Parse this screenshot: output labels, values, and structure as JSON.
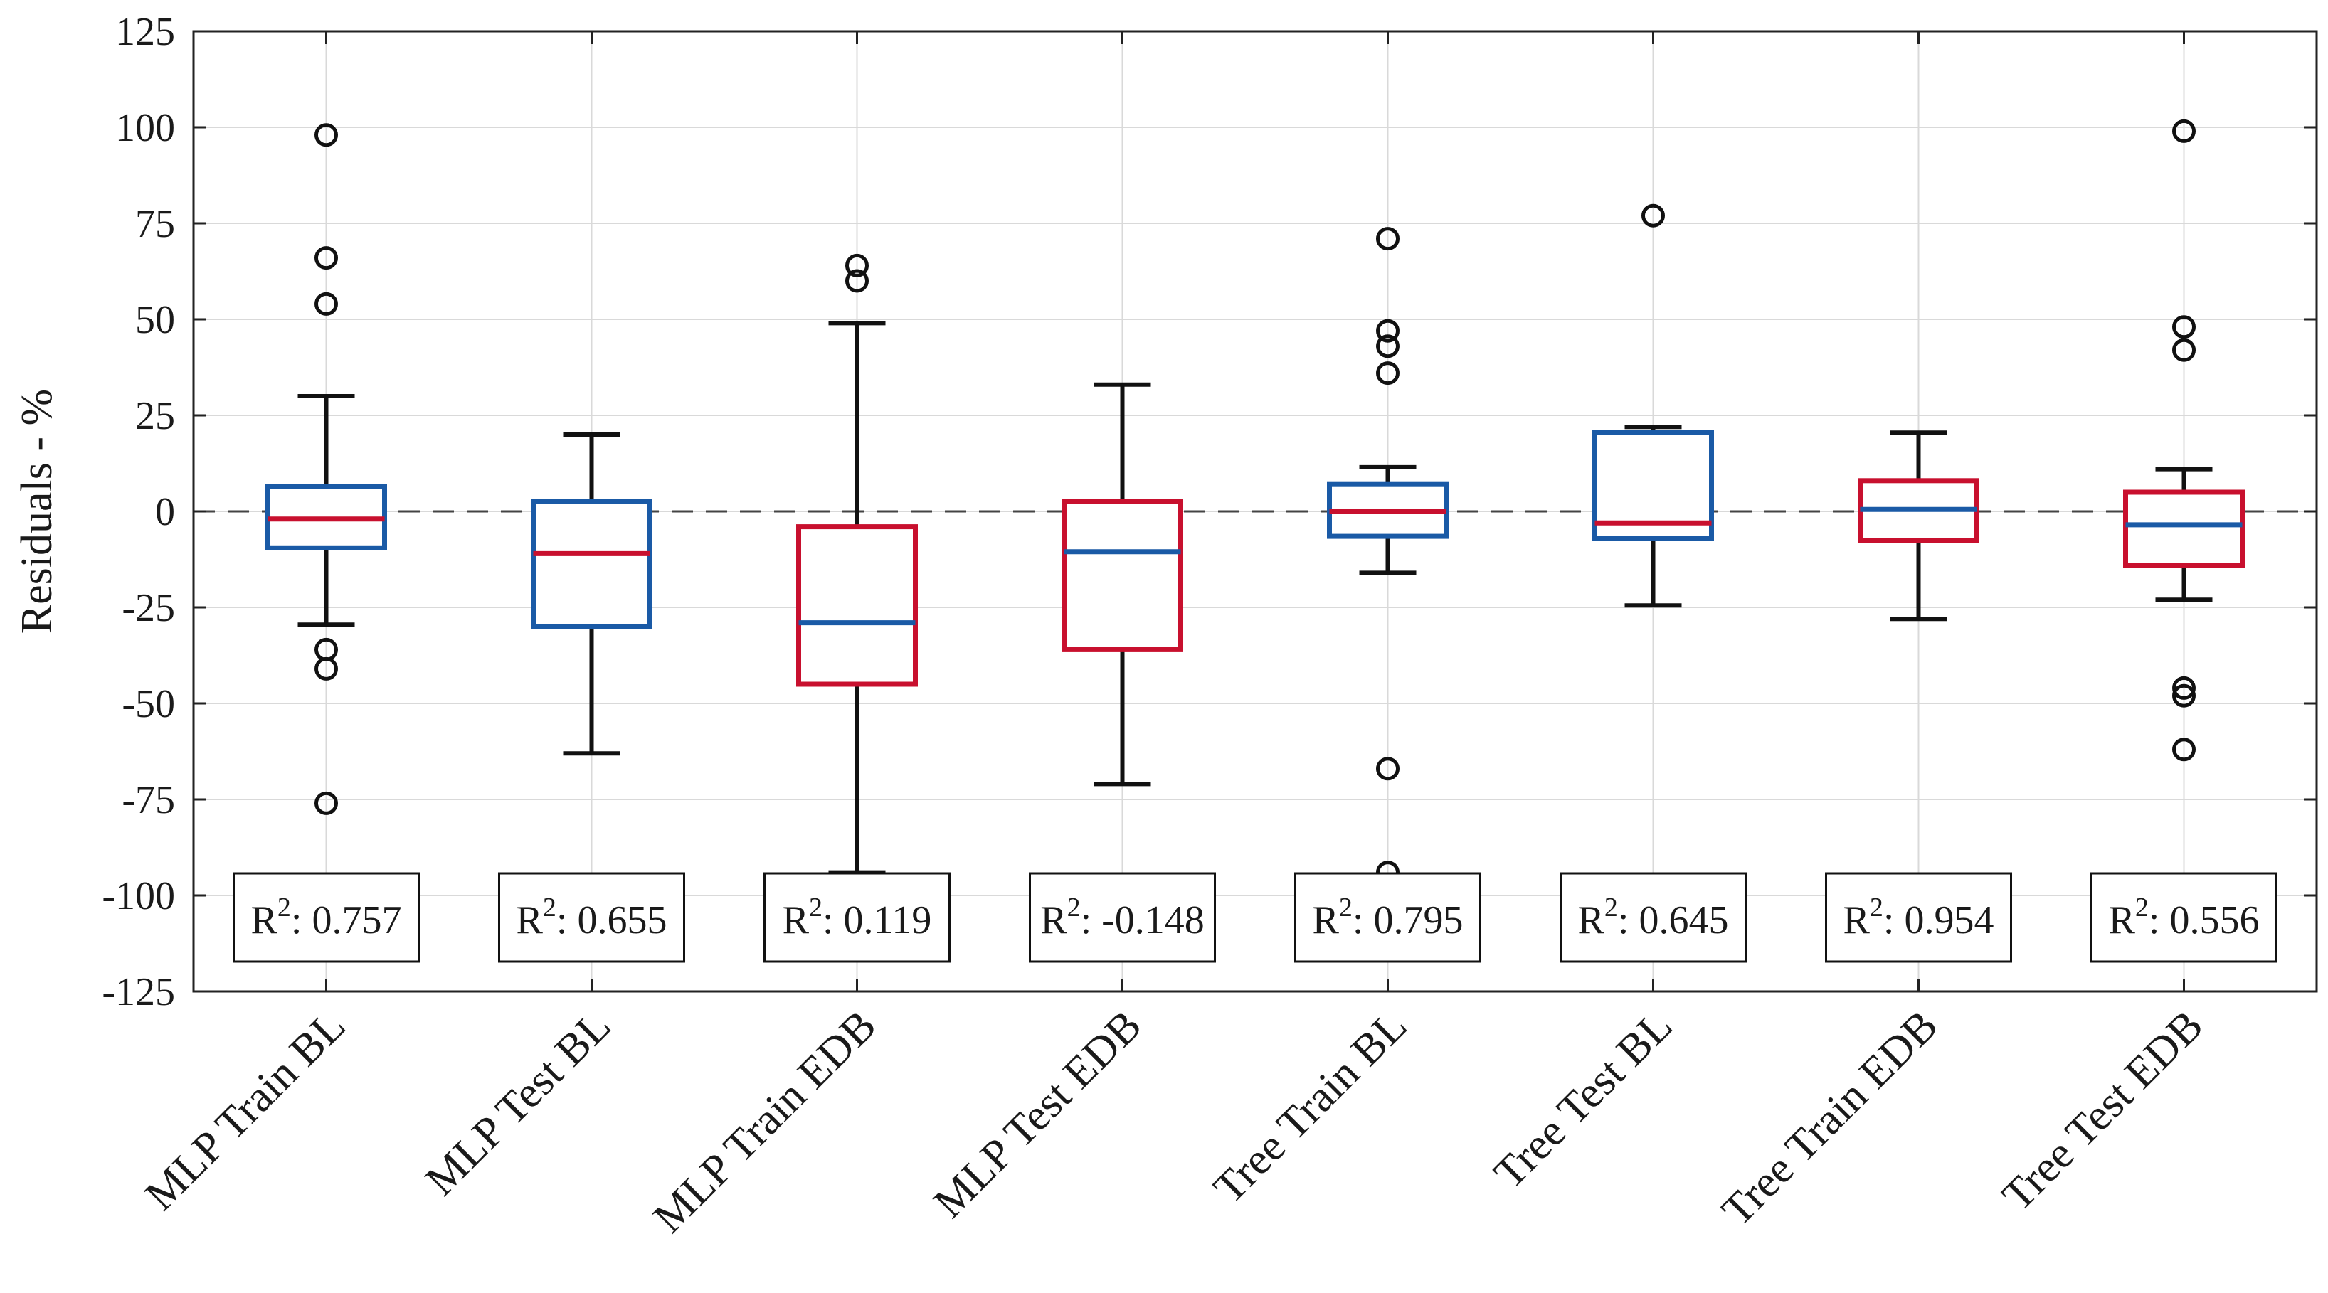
{
  "chart_data": {
    "type": "boxplot",
    "title": "",
    "xlabel": "",
    "ylabel": "Residuals - %",
    "ylim": [
      -125,
      125
    ],
    "yticks": [
      125,
      100,
      75,
      50,
      25,
      0,
      -25,
      -50,
      -75,
      -100,
      -125
    ],
    "ytick_labels": [
      "125",
      "100",
      "75",
      "50",
      "25",
      "0",
      "-25",
      "-50",
      "-75",
      "-100",
      "-125"
    ],
    "grid": true,
    "reference_line": {
      "y": 0,
      "style": "dashed"
    },
    "colors": {
      "blue": "#1a5aa6",
      "red": "#c8102e",
      "whisker": "#111111",
      "grid": "#d9d9d9"
    },
    "categories": [
      "MLP Train BL",
      "MLP Test BL",
      "MLP Train EDB",
      "MLP Test EDB",
      "Tree Train BL",
      "Tree Test BL",
      "Tree Train EDB",
      "Tree Test EDB"
    ],
    "boxes": [
      {
        "label": "MLP Train BL",
        "q1": -9.5,
        "median": -2,
        "q3": 6.5,
        "whisker_low": -29.5,
        "whisker_high": 30,
        "box_color": "blue",
        "median_color": "red",
        "outliers": [
          98,
          66,
          54,
          -36,
          -41,
          -76
        ],
        "r2_label": "R",
        "r2_sup": "2",
        "r2_value": ": 0.757"
      },
      {
        "label": "MLP Test BL",
        "q1": -30,
        "median": -11,
        "q3": 2.5,
        "whisker_low": -63,
        "whisker_high": 20,
        "box_color": "blue",
        "median_color": "red",
        "outliers": [],
        "r2_label": "R",
        "r2_sup": "2",
        "r2_value": ": 0.655"
      },
      {
        "label": "MLP Train EDB",
        "q1": -45,
        "median": -29,
        "q3": -4,
        "whisker_low": -94,
        "whisker_high": 49,
        "box_color": "red",
        "median_color": "blue",
        "outliers": [
          64,
          60
        ],
        "r2_label": "R",
        "r2_sup": "2",
        "r2_value": ": 0.119"
      },
      {
        "label": "MLP Test EDB",
        "q1": -36,
        "median": -10.5,
        "q3": 2.5,
        "whisker_low": -71,
        "whisker_high": 33,
        "box_color": "red",
        "median_color": "blue",
        "outliers": [],
        "r2_label": "R",
        "r2_sup": "2",
        "r2_value": ": -0.148"
      },
      {
        "label": "Tree Train BL",
        "q1": -6.5,
        "median": 0,
        "q3": 7,
        "whisker_low": -16,
        "whisker_high": 11.5,
        "box_color": "blue",
        "median_color": "red",
        "outliers": [
          71,
          47,
          43,
          36,
          -67,
          -94
        ],
        "r2_label": "R",
        "r2_sup": "2",
        "r2_value": ": 0.795"
      },
      {
        "label": "Tree Test BL",
        "q1": -7,
        "median": -3,
        "q3": 20.5,
        "whisker_low": -24.5,
        "whisker_high": 22,
        "box_color": "blue",
        "median_color": "red",
        "outliers": [
          77
        ],
        "r2_label": "R",
        "r2_sup": "2",
        "r2_value": ": 0.645"
      },
      {
        "label": "Tree Train EDB",
        "q1": -7.5,
        "median": 0.5,
        "q3": 8,
        "whisker_low": -28,
        "whisker_high": 20.5,
        "box_color": "red",
        "median_color": "blue",
        "outliers": [],
        "r2_label": "R",
        "r2_sup": "2",
        "r2_value": ": 0.954"
      },
      {
        "label": "Tree Test EDB",
        "q1": -14,
        "median": -3.5,
        "q3": 5,
        "whisker_low": -23,
        "whisker_high": 11,
        "box_color": "red",
        "median_color": "blue",
        "outliers": [
          99,
          48,
          42,
          -46,
          -48,
          -62
        ],
        "r2_label": "R",
        "r2_sup": "2",
        "r2_value": ": 0.556"
      }
    ]
  }
}
